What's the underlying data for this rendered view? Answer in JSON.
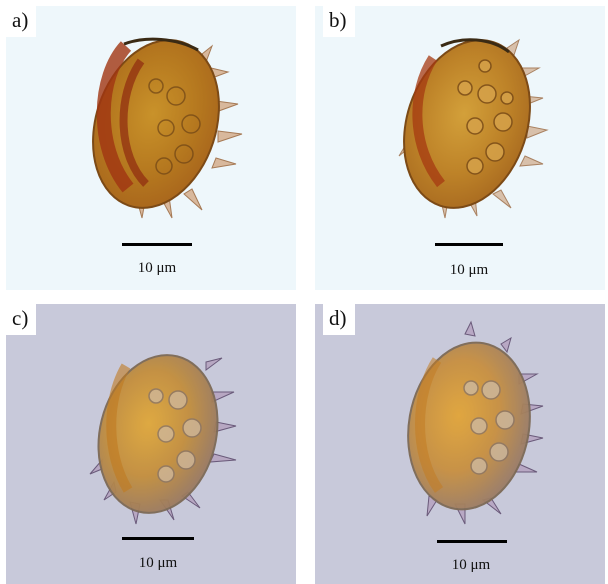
{
  "panels": [
    {
      "label": "a)",
      "scale_label": "10 μm",
      "background": "#eef7fb",
      "stain": "red-brown"
    },
    {
      "label": "b)",
      "scale_label": "10 μm",
      "background": "#eef7fb",
      "stain": "red-brown"
    },
    {
      "label": "c)",
      "scale_label": "10 μm",
      "background": "#c8c9da",
      "stain": "golden"
    },
    {
      "label": "d)",
      "scale_label": "10 μm",
      "background": "#c8c9da",
      "stain": "golden"
    }
  ]
}
